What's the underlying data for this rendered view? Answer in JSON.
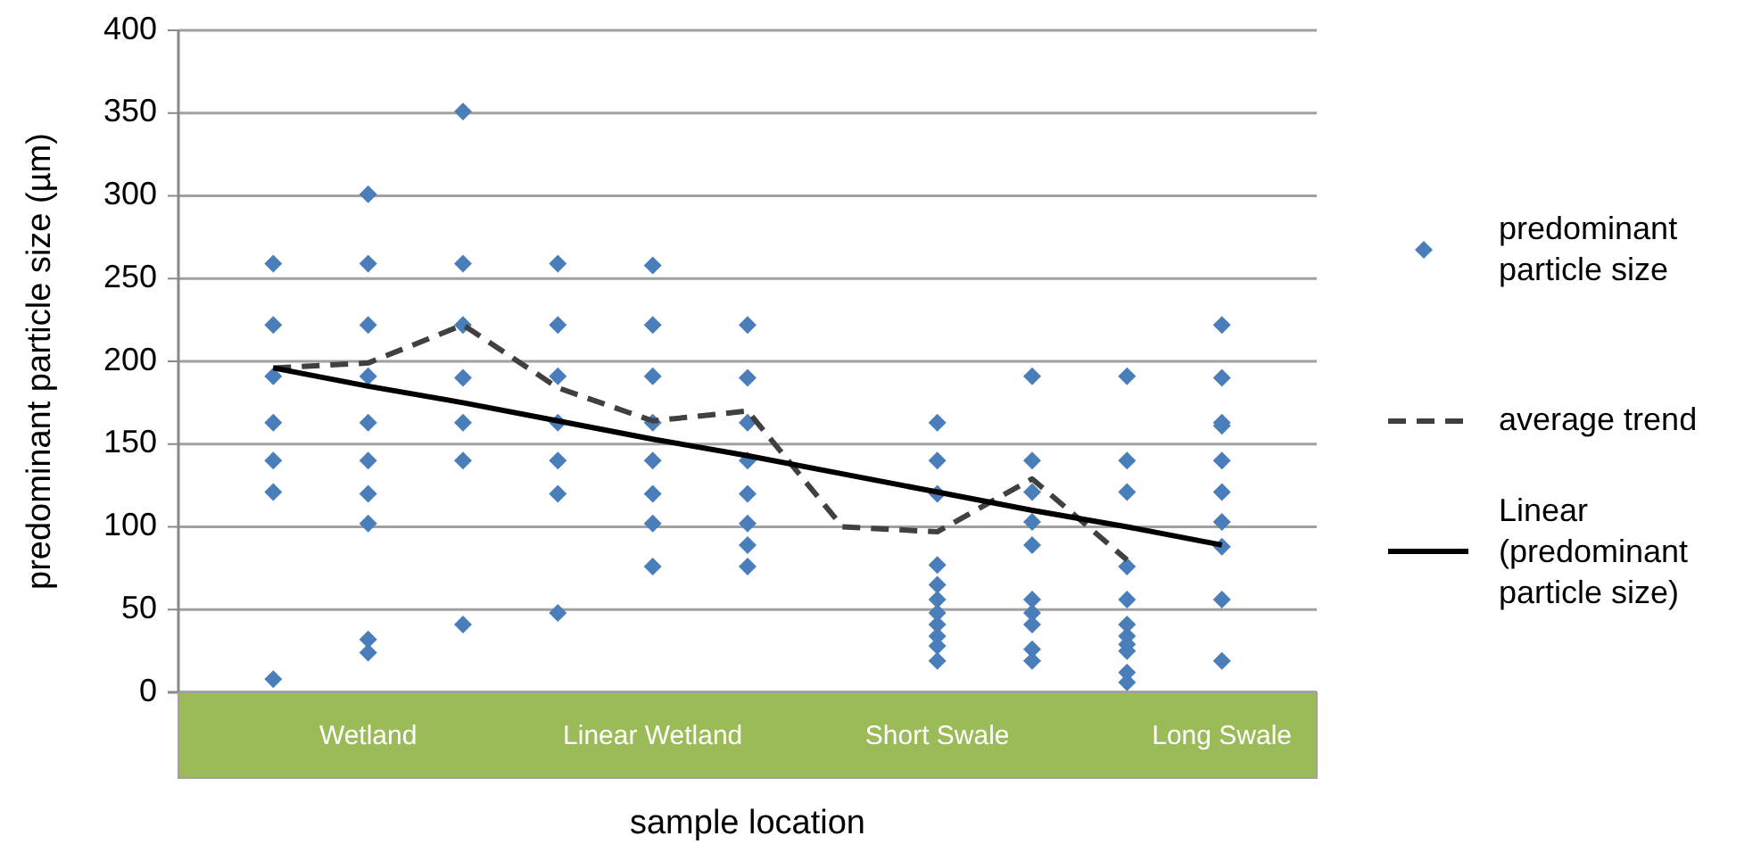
{
  "chart_data": {
    "type": "scatter",
    "xlabel": "sample location",
    "ylabel": "predominant particle size (µm)",
    "ylim": [
      0,
      400
    ],
    "yticks": [
      0,
      50,
      100,
      150,
      200,
      250,
      300,
      350,
      400
    ],
    "grid": "y",
    "legend": "right",
    "marker": "diamond",
    "categories": [
      null,
      "Wetland",
      null,
      null,
      "Linear Wetland",
      null,
      null,
      "Short Swale",
      null,
      null,
      "Long Swale"
    ],
    "series": [
      {
        "name": "predominant particle size",
        "color": "#4a7ebb",
        "values": [
          259,
          301,
          351,
          259,
          258,
          222,
          null,
          163,
          191,
          191,
          222
        ]
      },
      {
        "color": "#4a7ebb",
        "values": [
          222,
          259,
          259,
          222,
          222,
          190,
          null,
          140,
          140,
          140,
          190
        ]
      },
      {
        "color": "#4a7ebb",
        "values": [
          191,
          222,
          222,
          191,
          191,
          163,
          null,
          120,
          121,
          121,
          163
        ]
      },
      {
        "color": "#4a7ebb",
        "values": [
          163,
          191,
          190,
          163,
          163,
          140,
          null,
          77,
          103,
          76,
          161
        ]
      },
      {
        "color": "#4a7ebb",
        "values": [
          140,
          163,
          163,
          140,
          140,
          120,
          null,
          65,
          89,
          56,
          140
        ]
      },
      {
        "color": "#4a7ebb",
        "values": [
          121,
          140,
          140,
          120,
          120,
          102,
          null,
          56,
          56,
          41,
          121
        ]
      },
      {
        "color": "#4a7ebb",
        "values": [
          8,
          120,
          41,
          48,
          102,
          89,
          null,
          48,
          48,
          34,
          103
        ]
      },
      {
        "color": "#4a7ebb",
        "values": [
          null,
          102,
          null,
          null,
          76,
          76,
          null,
          41,
          41,
          29,
          88
        ]
      },
      {
        "color": "#4a7ebb",
        "values": [
          null,
          32,
          null,
          null,
          null,
          null,
          null,
          34,
          26,
          25,
          56
        ]
      },
      {
        "color": "#4a7ebb",
        "values": [
          null,
          24,
          null,
          null,
          null,
          null,
          null,
          28,
          19,
          12,
          19
        ]
      },
      {
        "color": "#4a7ebb",
        "values": [
          null,
          null,
          null,
          null,
          null,
          null,
          null,
          19,
          null,
          6,
          null
        ]
      },
      {
        "name": "average trend",
        "type": "line",
        "line_style": "dashed",
        "marker": "none",
        "color": "#404040",
        "values": [
          196,
          199,
          222,
          184,
          164,
          170,
          100,
          97,
          129,
          80,
          null
        ]
      },
      {
        "name": "Linear (predominant particle size)",
        "type": "line",
        "line_style": "solid",
        "marker": "none",
        "color": "#000000",
        "values": [
          196,
          185,
          175,
          164,
          153,
          143,
          132,
          121,
          110,
          100,
          89
        ]
      }
    ]
  }
}
